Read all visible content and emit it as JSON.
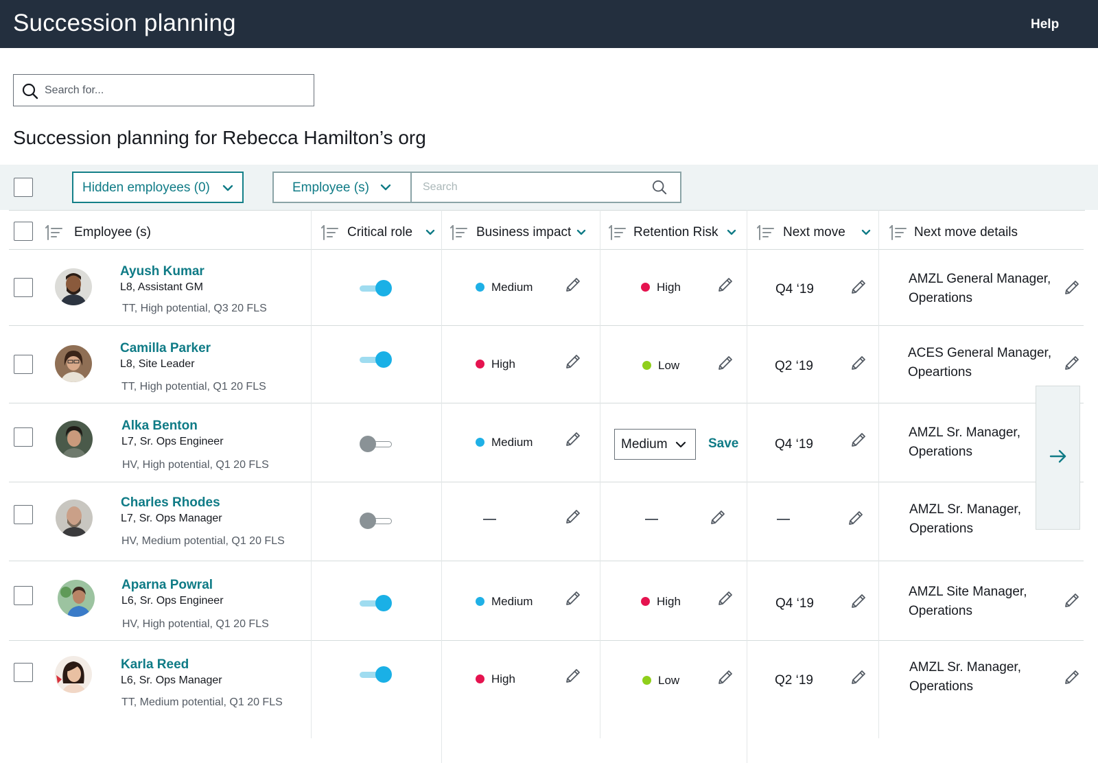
{
  "header": {
    "app_title": "Succession planning",
    "help": "Help"
  },
  "search": {
    "placeholder": "Search for..."
  },
  "page": {
    "title": "Succession planning for Rebecca Hamilton’s org"
  },
  "filters": {
    "hidden_employees": "Hidden employees (0)",
    "employee_filter": "Employee (s)",
    "search_placeholder": "Search"
  },
  "columns": {
    "employee": "Employee (s)",
    "critical_role": "Critical role",
    "business_impact": "Business impact",
    "retention_risk": "Retention Risk",
    "next_move": "Next move",
    "next_move_details": "Next move details"
  },
  "colors": {
    "header_bg": "#232f3e",
    "teal_accent": "#0f7b86",
    "medium": "#1fb0e6",
    "high": "#e5134f",
    "low": "#8fcf1b"
  },
  "editing": {
    "retention_value": "Medium",
    "save": "Save"
  },
  "rows": [
    {
      "name": "Ayush Kumar",
      "role": "L8, Assistant GM",
      "tags": "TT, High potential, Q3 20 FLS",
      "critical_role": true,
      "business_impact": "Medium",
      "retention_risk": "High",
      "next_move": "Q4 ‘19",
      "details_line1": "AMZL General Manager,",
      "details_line2": "Operations"
    },
    {
      "name": "Camilla Parker",
      "role": "L8, Site Leader",
      "tags": "TT, High potential, Q1 20 FLS",
      "critical_role": true,
      "business_impact": "High",
      "retention_risk": "Low",
      "next_move": "Q2 ‘19",
      "details_line1": "ACES General Manager,",
      "details_line2": "Opeartions"
    },
    {
      "name": "Alka Benton",
      "role": "L7, Sr. Ops Engineer",
      "tags": "HV, High potential, Q1 20 FLS",
      "critical_role": false,
      "business_impact": "Medium",
      "retention_risk": "Medium",
      "next_move": "Q4 ‘19",
      "details_line1": "AMZL Sr. Manager,",
      "details_line2": "Operations"
    },
    {
      "name": "Charles Rhodes",
      "role": "L7, Sr. Ops Manager",
      "tags": "HV, Medium potential, Q1 20 FLS",
      "critical_role": false,
      "business_impact": "",
      "retention_risk": "",
      "next_move": "",
      "details_line1": "AMZL Sr. Manager,",
      "details_line2": "Operations"
    },
    {
      "name": "Aparna Powral",
      "role": "L6, Sr. Ops Engineer",
      "tags": "HV, High potential, Q1 20 FLS",
      "critical_role": true,
      "business_impact": "Medium",
      "retention_risk": "High",
      "next_move": "Q4 ‘19",
      "details_line1": "AMZL Site Manager,",
      "details_line2": "Operations"
    },
    {
      "name": "Karla Reed",
      "role": "L6, Sr. Ops Manager",
      "tags": "TT, Medium potential, Q1 20 FLS",
      "critical_role": true,
      "business_impact": "High",
      "retention_risk": "Low",
      "next_move": "Q2 ‘19",
      "details_line1": "AMZL Sr. Manager,",
      "details_line2": "Operations"
    }
  ]
}
